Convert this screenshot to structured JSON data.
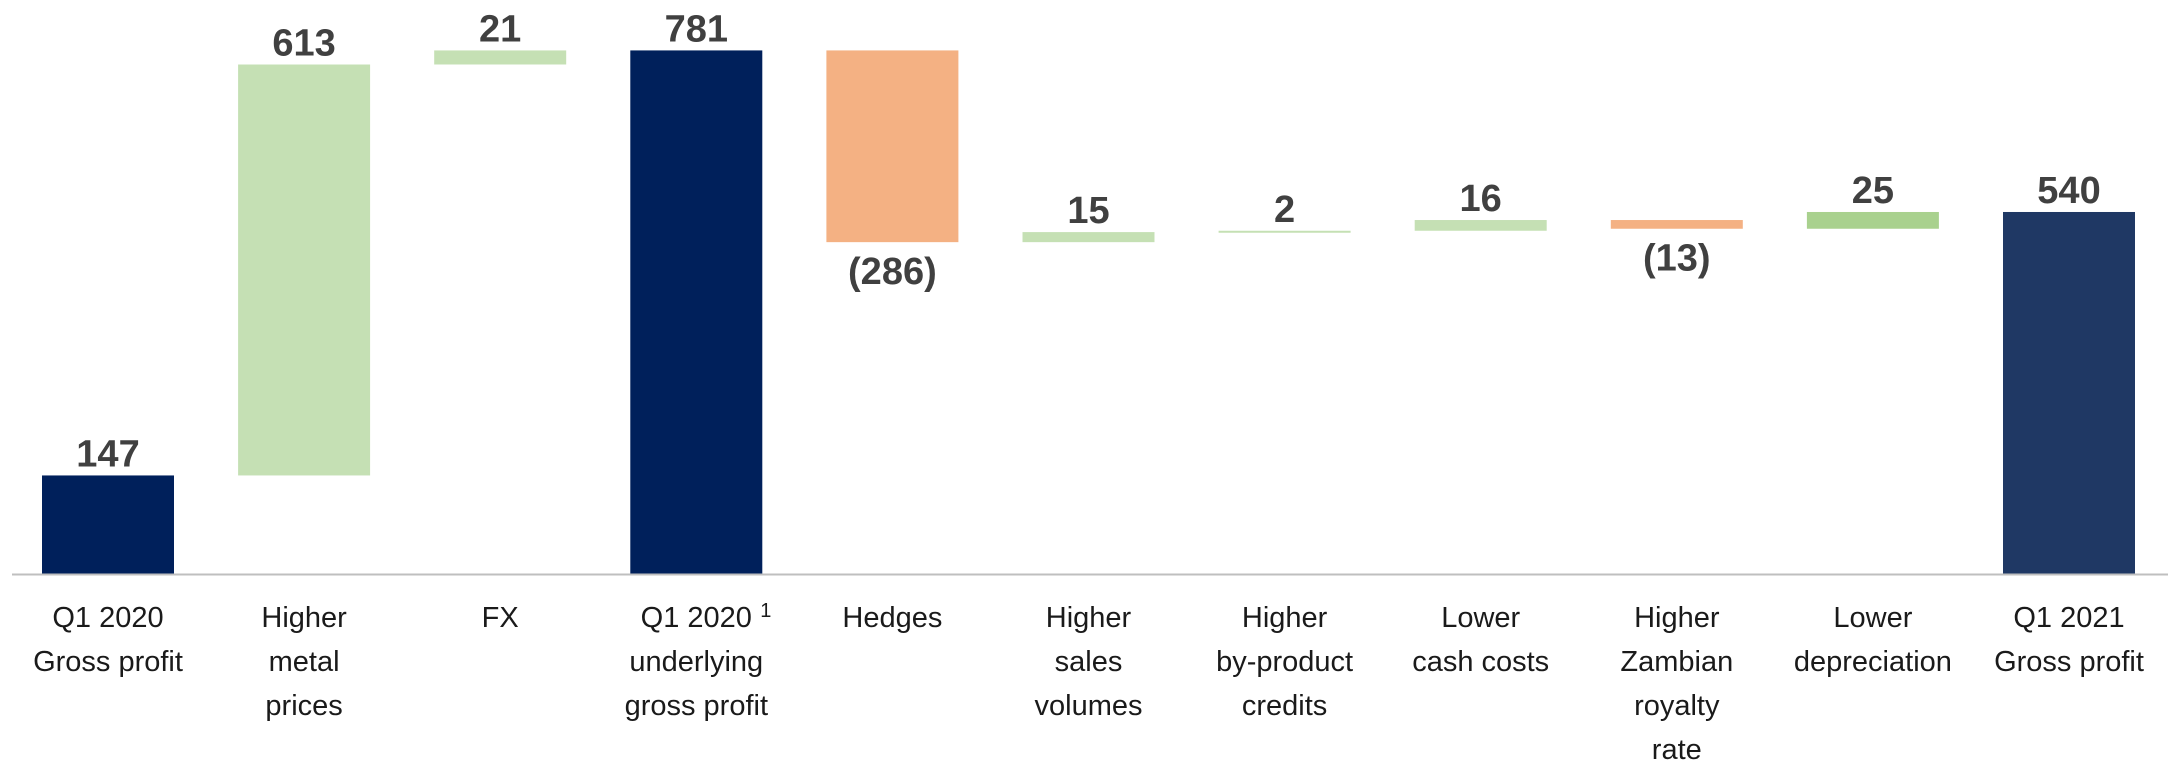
{
  "chart_data": {
    "type": "waterfall",
    "title": "",
    "xlabel": "",
    "ylabel": "",
    "ylim": [
      0,
      820
    ],
    "grid": false,
    "legend": "none",
    "categories": [
      [
        "Q1 2020",
        "Gross profit"
      ],
      [
        "Higher",
        "metal",
        "prices"
      ],
      [
        "FX"
      ],
      [
        "Q1 2020",
        "underlying",
        "gross profit"
      ],
      [
        "Hedges"
      ],
      [
        "Higher",
        "sales",
        "volumes"
      ],
      [
        "Higher",
        "by-product",
        "credits"
      ],
      [
        "Lower",
        "cash costs"
      ],
      [
        "Higher",
        "Zambian",
        "royalty",
        "rate"
      ],
      [
        "Lower",
        "depreciation"
      ],
      [
        "Q1 2021",
        "Gross profit"
      ]
    ],
    "footnote_marker": "1",
    "footnote_category_index": 3,
    "kinds": [
      "total",
      "delta",
      "delta",
      "total",
      "delta",
      "delta",
      "delta",
      "delta",
      "delta",
      "delta",
      "total"
    ],
    "values": [
      147,
      613,
      21,
      781,
      -286,
      15,
      2,
      16,
      -13,
      25,
      540
    ],
    "labels": [
      "147",
      "613",
      "21",
      "781",
      "(286)",
      "15",
      "2",
      "16",
      "(13)",
      "25",
      "540"
    ],
    "colors": {
      "total_start": "#00205b",
      "total_end": "#1f3864",
      "increase": "#c5e0b4",
      "increase_strong": "#a9d18e",
      "decrease": "#f4b183",
      "axis": "#bfbfbf"
    },
    "bar_colors": [
      "#00205b",
      "#c5e0b4",
      "#c5e0b4",
      "#00205b",
      "#f4b183",
      "#c5e0b4",
      "#c5e0b4",
      "#c5e0b4",
      "#f4b183",
      "#a9d18e",
      "#1f3864"
    ]
  }
}
